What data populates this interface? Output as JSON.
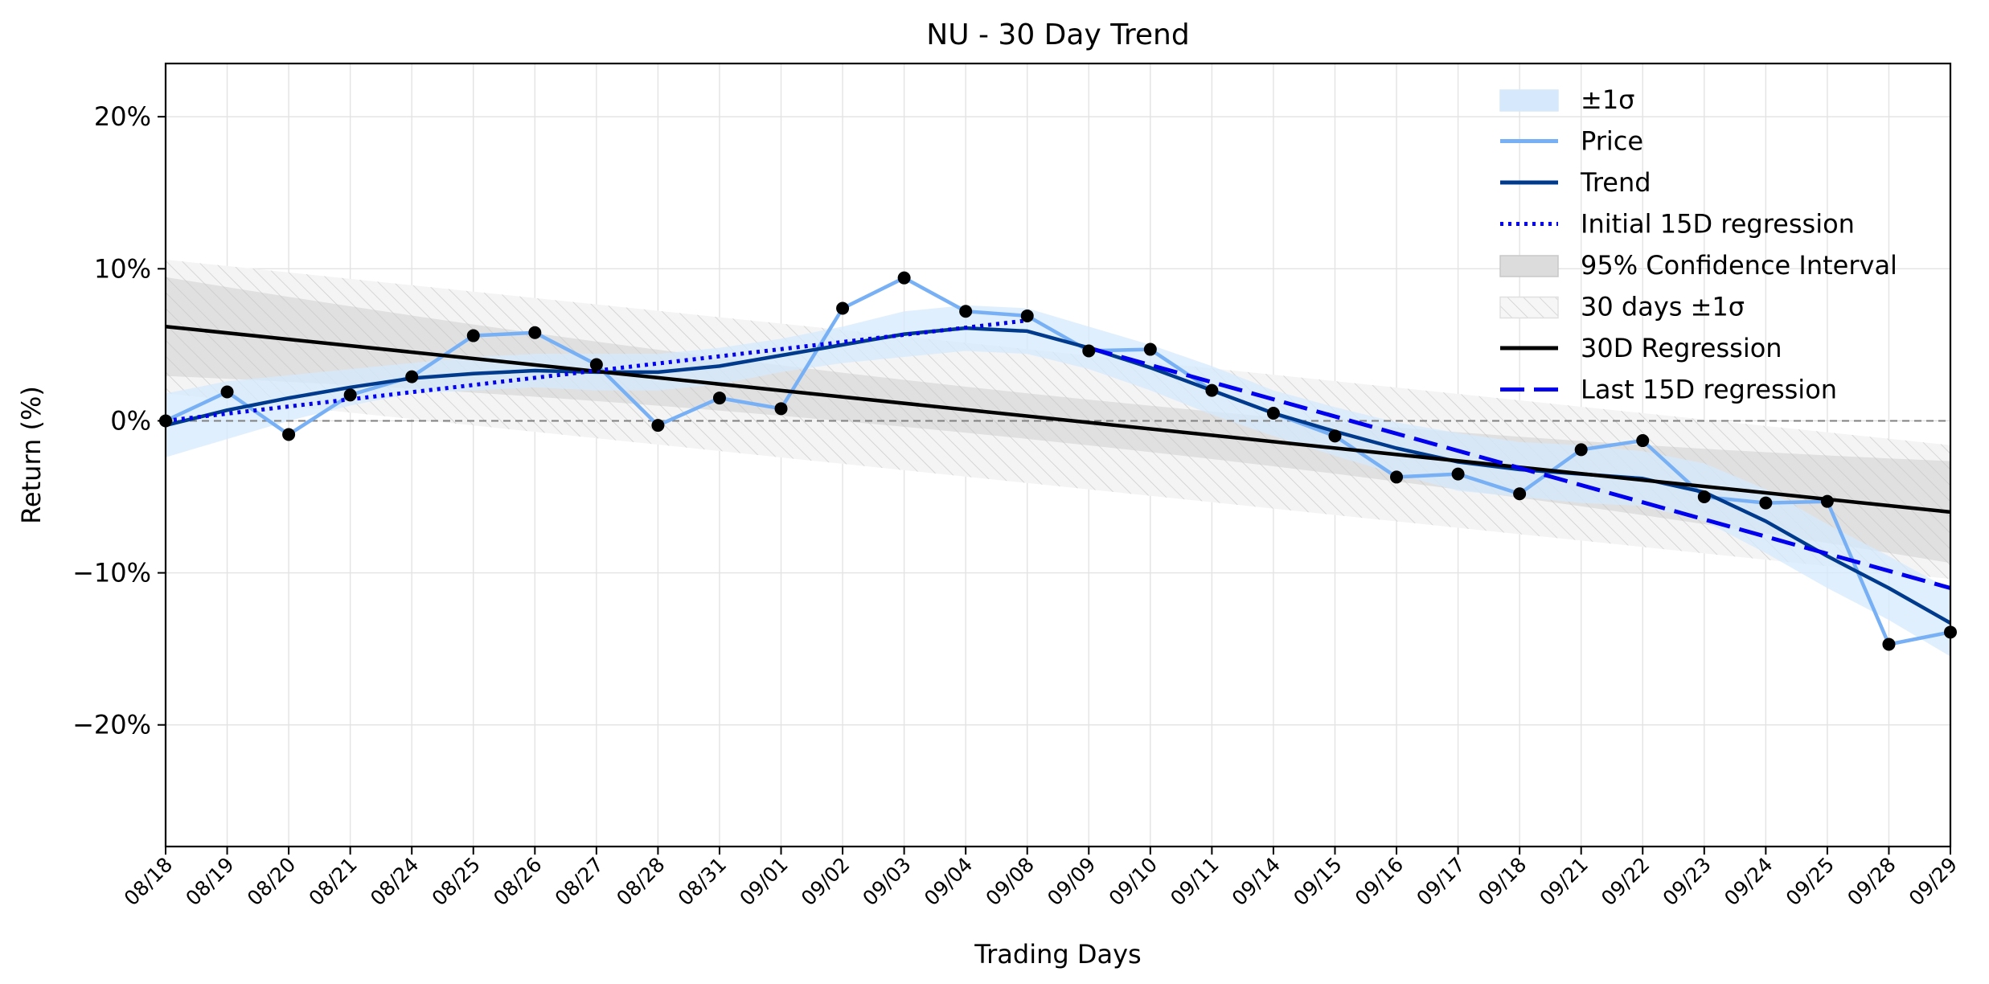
{
  "chart_data": {
    "type": "line",
    "title": "NU - 30 Day Trend",
    "xlabel": "Trading Days",
    "ylabel": "Return (%)",
    "ylim": [
      -28,
      23.5
    ],
    "yticks": [
      20,
      10,
      0,
      -10,
      -20
    ],
    "ytick_labels": [
      "20%",
      "10%",
      "0%",
      "−10%",
      "−20%"
    ],
    "grid": true,
    "legend_position": "top-right",
    "categories": [
      "08/18",
      "08/19",
      "08/20",
      "08/21",
      "08/24",
      "08/25",
      "08/26",
      "08/27",
      "08/28",
      "08/31",
      "09/01",
      "09/02",
      "09/03",
      "09/04",
      "09/08",
      "09/09",
      "09/10",
      "09/11",
      "09/14",
      "09/15",
      "09/16",
      "09/17",
      "09/18",
      "09/21",
      "09/22",
      "09/23",
      "09/24",
      "09/25",
      "09/28",
      "09/29"
    ],
    "series": [
      {
        "name": "Price",
        "color": "#78b0f5",
        "values": [
          0.0,
          1.9,
          -0.9,
          1.7,
          2.9,
          5.6,
          5.8,
          3.7,
          -0.3,
          1.5,
          0.8,
          7.4,
          9.4,
          7.2,
          6.9,
          4.6,
          4.7,
          2.0,
          0.5,
          -1.0,
          -3.7,
          -3.5,
          -4.8,
          -1.9,
          -1.3,
          -5.0,
          -5.4,
          -5.3,
          -14.7,
          -13.9
        ]
      },
      {
        "name": "Trend",
        "color": "#003a8c",
        "values": [
          -0.3,
          0.7,
          1.5,
          2.2,
          2.8,
          3.1,
          3.3,
          3.2,
          3.2,
          3.6,
          4.3,
          5.0,
          5.7,
          6.1,
          5.9,
          4.8,
          3.5,
          2.0,
          0.5,
          -0.7,
          -1.8,
          -2.7,
          -3.2,
          -3.5,
          -3.8,
          -4.7,
          -6.6,
          -8.9,
          -11.0,
          -13.3
        ]
      },
      {
        "name": "±1σ",
        "color": "#d6e9fc",
        "upper": [
          1.8,
          2.6,
          3.0,
          3.4,
          3.8,
          4.2,
          4.4,
          4.4,
          4.4,
          4.8,
          5.4,
          6.2,
          7.2,
          7.6,
          7.4,
          6.2,
          5.0,
          3.6,
          2.0,
          0.9,
          -0.1,
          -0.8,
          -1.4,
          -1.6,
          -2.0,
          -2.8,
          -4.5,
          -6.8,
          -8.9,
          -11.1
        ],
        "lower": [
          -2.4,
          -1.2,
          0.0,
          1.0,
          1.8,
          2.0,
          2.2,
          2.0,
          2.0,
          2.4,
          3.2,
          3.8,
          4.2,
          4.6,
          4.4,
          3.4,
          2.0,
          0.4,
          -1.0,
          -2.3,
          -3.5,
          -4.6,
          -5.0,
          -5.4,
          -5.6,
          -6.6,
          -8.7,
          -11.0,
          -13.1,
          -15.5
        ]
      }
    ],
    "initial_15d_regression": {
      "name": "Initial 15D regression",
      "color": "#0000ee",
      "from_index": 0,
      "to_index": 14,
      "start": 0.0,
      "end": 6.6
    },
    "last_15d_regression": {
      "name": "Last 15D regression",
      "color": "#0000ee",
      "from_index": 15,
      "to_index": 29,
      "start": 4.8,
      "end": -11.0
    },
    "regression_30d": {
      "name": "30D Regression",
      "color": "#000000",
      "start": 6.2,
      "end": -6.0
    },
    "confidence_95": {
      "name": "95% Confidence Interval",
      "color": "#b8b8b8",
      "start_halfwidth": 3.2,
      "mid_halfwidth": 1.5,
      "end_halfwidth": 3.4
    },
    "sigma_30d": {
      "name": "30 days ±1σ",
      "color": "#e8e8e8",
      "halfwidth": 4.4
    },
    "zero_line": {
      "value": 0,
      "color": "#808080"
    },
    "legend": [
      "±1σ",
      "Price",
      "Trend",
      "Initial 15D regression",
      "95% Confidence Interval",
      "30 days ±1σ",
      "30D Regression",
      "Last 15D regression"
    ]
  }
}
